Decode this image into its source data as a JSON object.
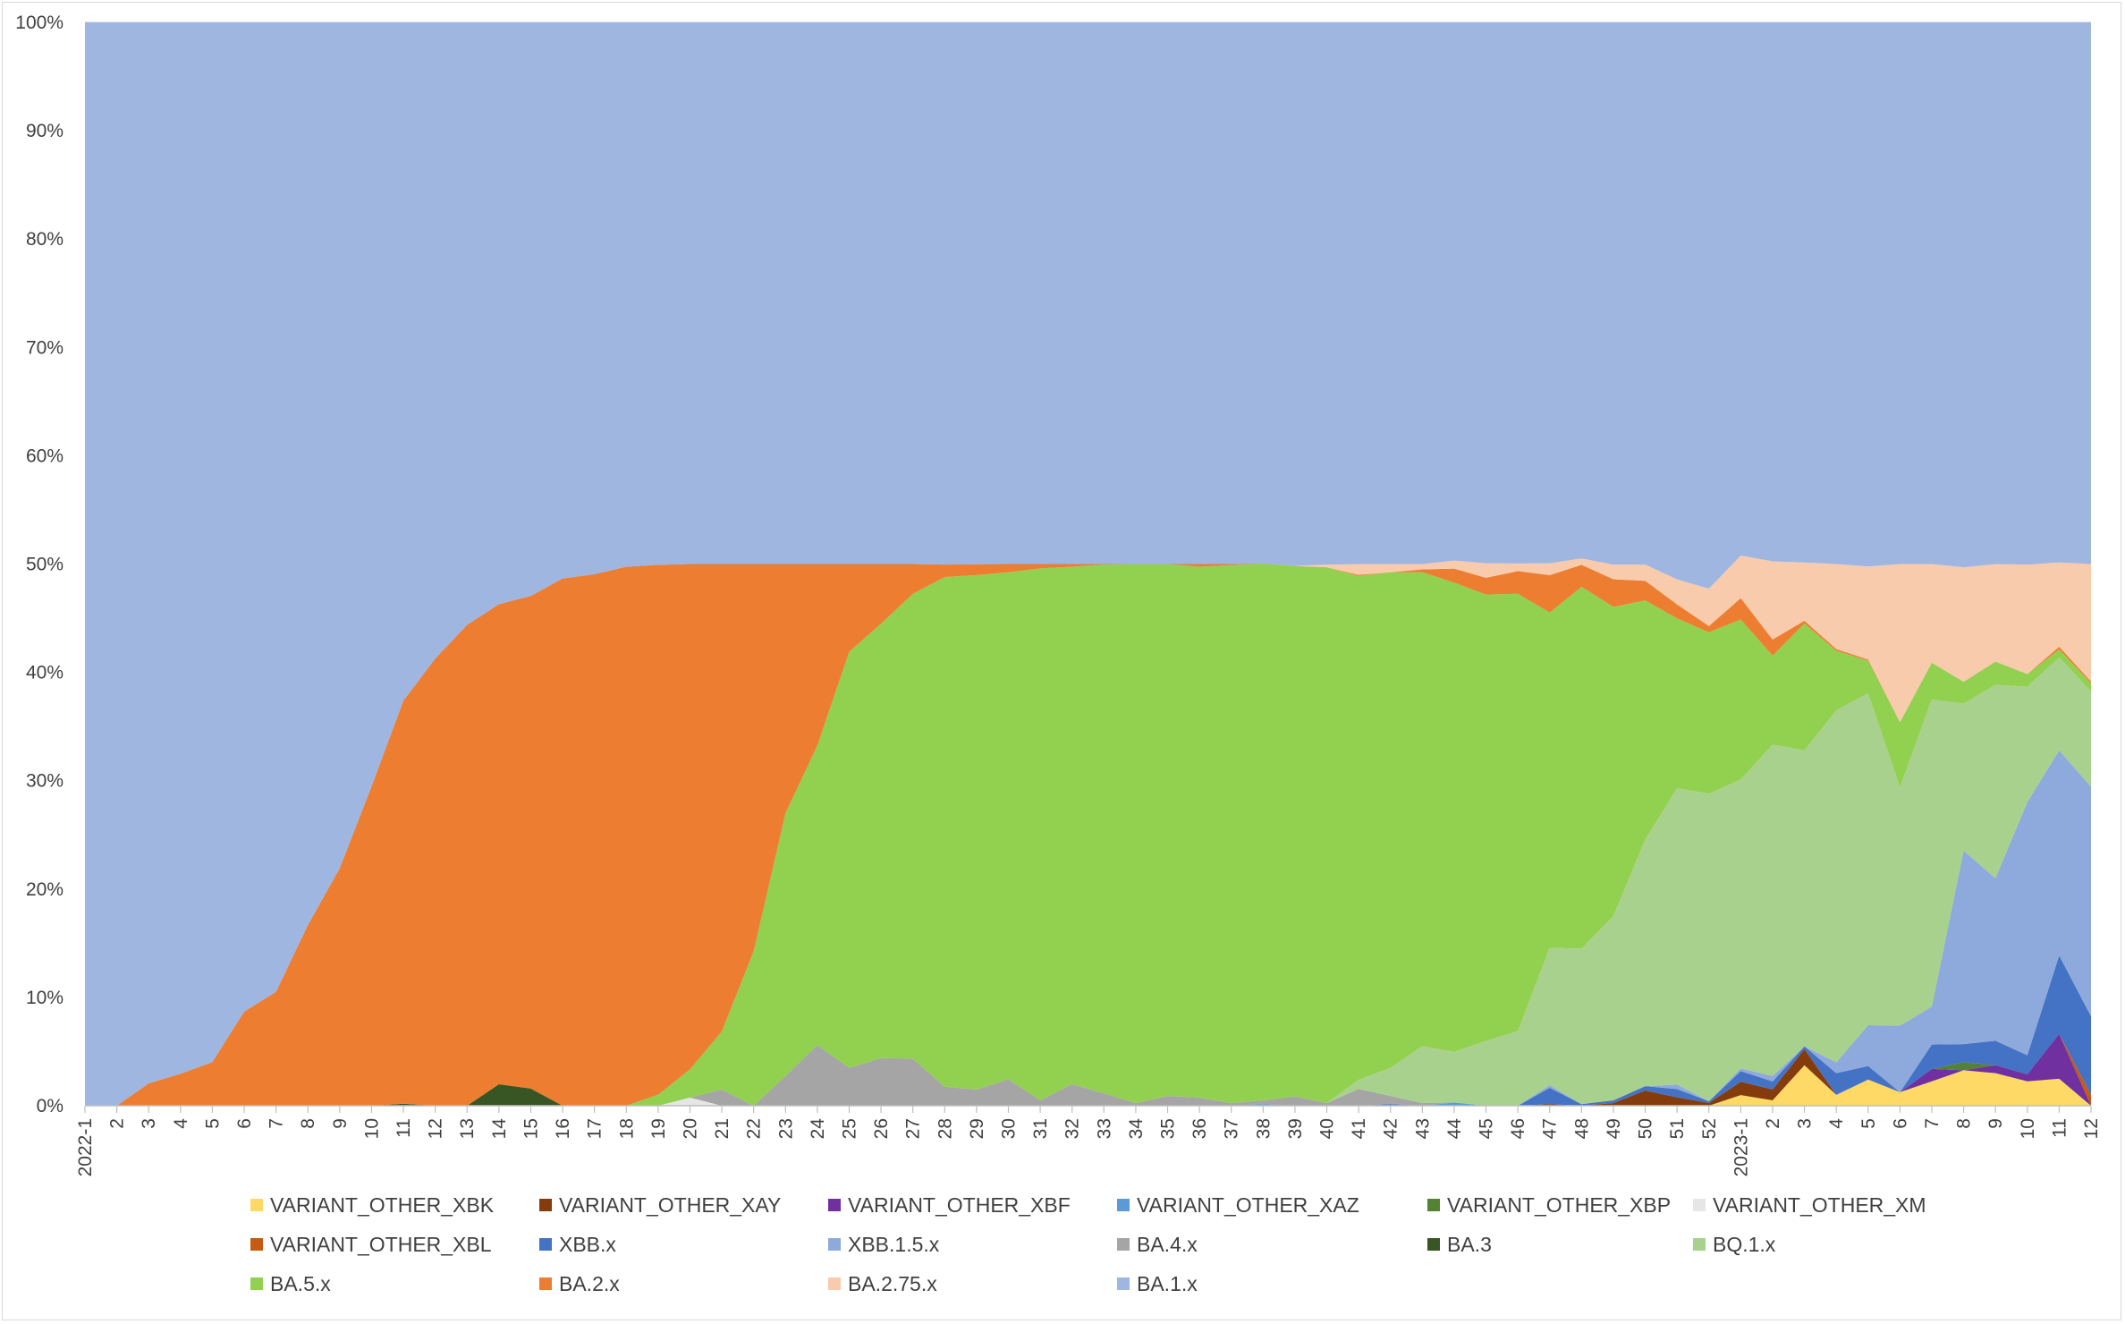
{
  "chart_data": {
    "type": "area",
    "stacking": "percent",
    "title": "",
    "xlabel": "",
    "ylabel": "",
    "ylim": [
      0,
      100
    ],
    "yticks": [
      "0%",
      "10%",
      "20%",
      "30%",
      "40%",
      "50%",
      "60%",
      "70%",
      "80%",
      "90%",
      "100%"
    ],
    "grid": "horizontal",
    "legend_position": "bottom",
    "categories": [
      "2022-1",
      "2",
      "3",
      "4",
      "5",
      "6",
      "7",
      "8",
      "9",
      "10",
      "11",
      "12",
      "13",
      "14",
      "15",
      "16",
      "17",
      "18",
      "19",
      "20",
      "21",
      "22",
      "23",
      "24",
      "25",
      "26",
      "27",
      "28",
      "29",
      "30",
      "31",
      "32",
      "33",
      "34",
      "35",
      "36",
      "37",
      "38",
      "39",
      "40",
      "41",
      "42",
      "43",
      "44",
      "45",
      "46",
      "47",
      "48",
      "49",
      "50",
      "51",
      "52",
      "2023-1",
      "2",
      "3",
      "4",
      "5",
      "6",
      "7",
      "8",
      "9",
      "10",
      "11",
      "12"
    ],
    "series": [
      {
        "name": "VARIANT_OTHER_XBK",
        "color": "#ffd966",
        "values": [
          0,
          0,
          0,
          0,
          0,
          0,
          0,
          0,
          0,
          0,
          0,
          0,
          0,
          0,
          0,
          0,
          0,
          0,
          0,
          0,
          0,
          0,
          0,
          0,
          0,
          0,
          0,
          0,
          0,
          0,
          0,
          0,
          0,
          0,
          0,
          0,
          0,
          0,
          0,
          0,
          0,
          0,
          0,
          0,
          0,
          0,
          0,
          0,
          0,
          0,
          0,
          0,
          2,
          1,
          7.5,
          2,
          4.8,
          2.5,
          4.5,
          6.5,
          6,
          4.5,
          5,
          0
        ]
      },
      {
        "name": "VARIANT_OTHER_XAY",
        "color": "#843c0c",
        "values": [
          0,
          0,
          0,
          0,
          0,
          0,
          0,
          0,
          0,
          0,
          0,
          0,
          0,
          0,
          0,
          0,
          0,
          0,
          0,
          0,
          0,
          0,
          0,
          0,
          0,
          0,
          0,
          0,
          0,
          0,
          0,
          0,
          0,
          0,
          0,
          0,
          0,
          0,
          0,
          0,
          0,
          0,
          0,
          0,
          0,
          0,
          0.3,
          0,
          0.5,
          2.8,
          1.5,
          0.5,
          2.5,
          2,
          3,
          0,
          0,
          0,
          0,
          0,
          0,
          0,
          0,
          0
        ]
      },
      {
        "name": "VARIANT_OTHER_XBF",
        "color": "#7030a0",
        "values": [
          0,
          0,
          0,
          0,
          0,
          0,
          0,
          0,
          0,
          0,
          0,
          0,
          0,
          0,
          0,
          0,
          0,
          0,
          0,
          0,
          0,
          0,
          0,
          0,
          0,
          0,
          0,
          0,
          0,
          0,
          0,
          0,
          0,
          0,
          0,
          0,
          0,
          0,
          0,
          0,
          0,
          0,
          0,
          0,
          0,
          0,
          0,
          0,
          0,
          0,
          0,
          0,
          0,
          0,
          0,
          0,
          0,
          0,
          2.3,
          0,
          1.5,
          1.3,
          8.3,
          0
        ]
      },
      {
        "name": "VARIANT_OTHER_XAZ",
        "color": "#5b9bd5",
        "values": [
          0,
          0,
          0,
          0,
          0,
          0,
          0,
          0,
          0,
          0,
          0,
          0,
          0,
          0,
          0,
          0,
          0,
          0,
          0,
          0,
          0,
          0,
          0,
          0,
          0,
          0,
          0,
          0,
          0,
          0,
          0,
          0,
          0,
          0,
          0,
          0,
          0,
          0.3,
          0,
          0,
          0,
          0,
          0,
          0.6,
          0,
          0,
          0,
          0,
          0,
          0,
          0,
          0,
          0,
          0,
          0,
          0,
          0,
          0,
          0,
          0,
          0,
          0,
          0,
          0
        ]
      },
      {
        "name": "VARIANT_OTHER_XBP",
        "color": "#548235",
        "values": [
          0,
          0,
          0,
          0,
          0,
          0,
          0,
          0,
          0,
          0,
          0,
          0,
          0,
          0,
          0,
          0,
          0,
          0,
          0,
          0,
          0,
          0,
          0,
          0,
          0,
          0,
          0,
          0,
          0,
          0,
          0,
          0,
          0,
          0,
          0,
          0,
          0,
          0,
          0,
          0,
          0,
          0,
          0,
          0,
          0,
          0,
          0,
          0,
          0,
          0,
          0,
          0,
          0,
          0,
          0,
          0,
          0,
          0,
          0,
          1.5,
          0,
          0,
          0,
          0
        ]
      },
      {
        "name": "VARIANT_OTHER_XM",
        "color": "#e7e6e6",
        "values": [
          0,
          0,
          0,
          0,
          0,
          0,
          0,
          0,
          0,
          0,
          0,
          0,
          0,
          0,
          0,
          0,
          0,
          0,
          0,
          1.5,
          0,
          0,
          0,
          0,
          0,
          0,
          0,
          0,
          0,
          0,
          0,
          0,
          0,
          0,
          0,
          0,
          0,
          0,
          0,
          0,
          0,
          0,
          0,
          0,
          0,
          0,
          0,
          0,
          0,
          0,
          0,
          0,
          0,
          0,
          0,
          0,
          0,
          0,
          0,
          0,
          0,
          0,
          0,
          0
        ]
      },
      {
        "name": "VARIANT_OTHER_XBL",
        "color": "#c55a11",
        "values": [
          0,
          0,
          0,
          0,
          0,
          0,
          0,
          0,
          0,
          0,
          0,
          0,
          0,
          0,
          0,
          0,
          0,
          0,
          0,
          0,
          0,
          0,
          0,
          0,
          0,
          0,
          0,
          0,
          0,
          0,
          0,
          0,
          0,
          0,
          0,
          0,
          0,
          0,
          0,
          0,
          0,
          0,
          0,
          0,
          0,
          0,
          0,
          0,
          0,
          0,
          0,
          0,
          0,
          0,
          0,
          0,
          0,
          0,
          0,
          0,
          0,
          0,
          0,
          2
        ]
      },
      {
        "name": "XBB.x",
        "color": "#4472c4",
        "values": [
          0,
          0,
          0,
          0,
          0,
          0,
          0,
          0,
          0,
          0,
          0,
          0,
          0,
          0,
          0,
          0,
          0,
          0,
          0,
          0,
          0,
          0,
          0,
          0,
          0,
          0,
          0,
          0,
          0,
          0,
          0,
          0,
          0,
          0,
          0,
          0,
          0,
          0,
          0,
          0,
          0,
          0.3,
          0,
          0,
          0,
          0,
          3,
          0.3,
          0.5,
          0.8,
          1.5,
          0.3,
          2,
          1.5,
          0.5,
          4,
          2.5,
          0,
          4.5,
          3.3,
          4.5,
          3.5,
          14.5,
          14.5
        ]
      },
      {
        "name": "XBB.1.5.x",
        "color": "#8ea9db",
        "values": [
          0,
          0,
          0,
          0,
          0,
          0,
          0,
          0,
          0,
          0,
          0,
          0,
          0,
          0,
          0,
          0,
          0,
          0,
          0,
          0,
          0,
          0,
          0,
          0,
          0,
          0,
          0,
          0,
          0,
          0,
          0,
          0,
          0,
          0,
          0,
          0,
          0,
          0,
          0,
          0,
          0,
          0,
          0,
          0,
          0,
          0,
          0.5,
          0,
          0,
          0,
          0.8,
          0,
          0.5,
          1,
          0,
          2,
          7.5,
          12.3,
          7,
          35.5,
          30,
          46.7,
          38,
          42.4
        ]
      },
      {
        "name": "BA.4.x",
        "color": "#a5a5a5",
        "values": [
          0,
          0,
          0,
          0,
          0,
          0,
          0,
          0,
          0,
          0,
          0,
          0,
          0,
          0,
          0,
          0,
          0,
          0,
          0,
          0,
          3,
          0,
          5.5,
          11.2,
          7,
          8.8,
          8.7,
          3.5,
          3,
          4.9,
          1,
          4,
          2.3,
          0.5,
          1.8,
          1.5,
          0.5,
          0.7,
          1.7,
          0.5,
          3.1,
          1.5,
          0.5,
          0,
          0,
          0,
          0,
          0,
          0,
          0,
          0,
          0,
          0,
          0,
          0,
          0,
          0,
          0,
          0,
          0,
          0,
          0,
          0,
          0
        ]
      },
      {
        "name": "BA.3",
        "color": "#375623",
        "values": [
          0,
          0,
          0,
          0,
          0,
          0,
          0,
          0,
          0,
          0,
          0.3,
          0,
          0,
          3.7,
          3,
          0,
          0,
          0,
          0,
          0,
          0,
          0,
          0,
          0,
          0,
          0,
          0,
          0,
          0,
          0,
          0,
          0,
          0,
          0,
          0,
          0,
          0,
          0,
          0,
          0,
          0,
          0,
          0,
          0,
          0,
          0,
          0,
          0,
          0,
          0,
          0,
          0,
          0,
          0,
          0,
          0,
          0,
          0,
          0,
          0,
          0,
          0,
          0,
          0
        ]
      },
      {
        "name": "BQ.1.x",
        "color": "#a9d18e",
        "values": [
          0,
          0,
          0,
          0,
          0,
          0,
          0,
          0,
          0,
          0,
          0,
          0,
          0,
          0,
          0,
          0,
          0,
          0,
          0,
          0,
          0,
          0,
          0,
          0,
          0,
          0,
          0,
          0,
          0,
          0,
          0,
          0,
          0,
          0,
          0,
          0,
          0,
          0,
          0,
          0,
          1.7,
          5.2,
          10.5,
          9.4,
          12,
          13.8,
          25.4,
          29,
          34,
          45.5,
          53.2,
          54.3,
          54.2,
          61.5,
          54.8,
          65,
          61,
          44,
          56.7,
          27,
          35.7,
          21.3,
          17.2,
          17.6
        ]
      },
      {
        "name": "BA.5.x",
        "color": "#92d050",
        "values": [
          0,
          0,
          0,
          0,
          0,
          0,
          0,
          0,
          0,
          0,
          0,
          0,
          0,
          0,
          0,
          0,
          0,
          0,
          2,
          5.2,
          10.7,
          28.5,
          48.5,
          55.3,
          76.8,
          80.2,
          85.8,
          94,
          94.9,
          93.6,
          98.2,
          95.5,
          97.6,
          99.5,
          98.2,
          98,
          99.3,
          99.2,
          97.6,
          98.8,
          93,
          91.5,
          87.5,
          87.2,
          82.5,
          80.8,
          62,
          67.5,
          57,
          44.1,
          30.5,
          28.5,
          30,
          16.5,
          23.5,
          11,
          6,
          12,
          6.8,
          4,
          4.3,
          2.3,
          1.5,
          1.5
        ]
      },
      {
        "name": "BA.2.x",
        "color": "#ed7d31",
        "values": [
          0,
          0,
          2,
          3,
          4.2,
          9.5,
          11.7,
          20,
          28,
          41.8,
          59.4,
          70.3,
          79.8,
          82.5,
          85.9,
          94.8,
          96.3,
          99,
          95.7,
          93.3,
          86.3,
          71.5,
          46,
          33.5,
          16.2,
          11,
          5.5,
          2.3,
          2,
          1.5,
          0.8,
          0.5,
          0.1,
          0,
          0,
          0.5,
          0.2,
          0,
          0,
          0,
          0.2,
          0,
          0.5,
          2.6,
          3.1,
          4.2,
          6.9,
          4.1,
          5.1,
          3.6,
          2.5,
          1.1,
          4,
          3,
          0.5,
          0.3,
          0.2,
          0,
          0,
          0,
          0,
          0,
          0.5,
          0.3
        ]
      },
      {
        "name": "BA.2.75.x",
        "color": "#f8cbad",
        "values": [
          0,
          0,
          0,
          0,
          0,
          0,
          0,
          0,
          0,
          0,
          0,
          0,
          0,
          0,
          0,
          0,
          0,
          0,
          0,
          0,
          0,
          0,
          0,
          0,
          0,
          0,
          0,
          0,
          0,
          0,
          0,
          0,
          0,
          0,
          0,
          0,
          0,
          0,
          0,
          0.5,
          2,
          1.5,
          1,
          1.5,
          2.7,
          1.4,
          2.2,
          1.2,
          2.7,
          3,
          4.5,
          6.6,
          8,
          14.5,
          10.8,
          15.7,
          17.1,
          29.2,
          18.2,
          21,
          18,
          20.2,
          15.6,
          21.7
        ]
      },
      {
        "name": "BA.1.x",
        "color": "#9fb6e0",
        "values": [
          77.5,
          93.2,
          94.8,
          98.7,
          100,
          99.8,
          99.5,
          100,
          99.7,
          100,
          100,
          100,
          100,
          100,
          100,
          100,
          100,
          100,
          98,
          100,
          100,
          100,
          100,
          100,
          100,
          100,
          100,
          100,
          100,
          100,
          100,
          100,
          100,
          100,
          100,
          100,
          100,
          100,
          100,
          100,
          100,
          100,
          100,
          100,
          100,
          100,
          100,
          100,
          100,
          100,
          100,
          100,
          100,
          100,
          100,
          100,
          100,
          100,
          100,
          100,
          100,
          100,
          100,
          100
        ]
      }
    ]
  }
}
